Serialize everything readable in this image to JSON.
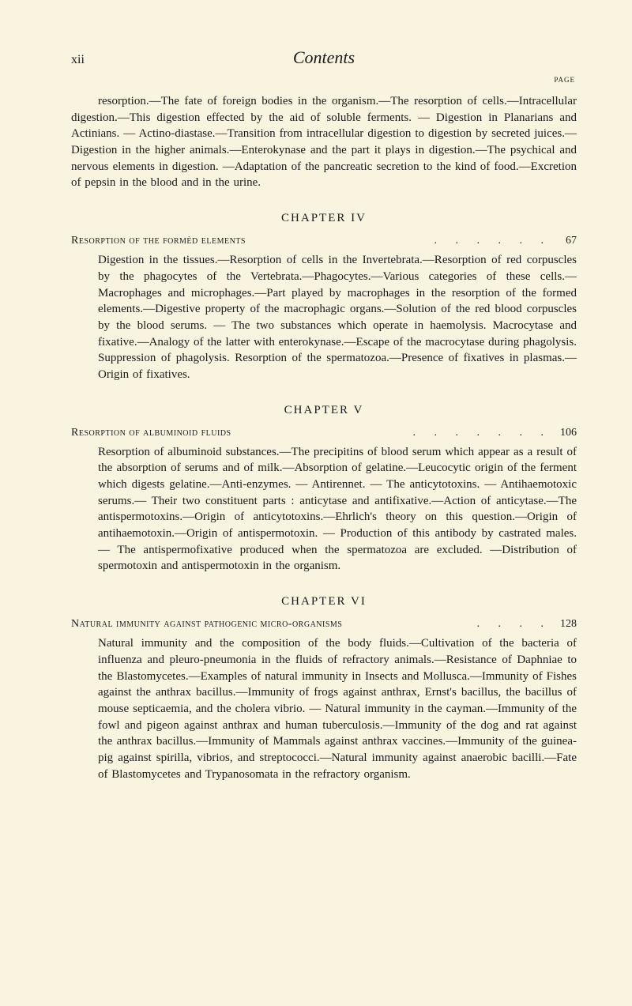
{
  "header": {
    "page_roman": "xii",
    "title": "Contents",
    "page_label": "PAGE"
  },
  "intro_para": "resorption.—The fate of foreign bodies in the organism.—The resorption of cells.—Intracellular digestion.—This digestion effected by the aid of soluble ferments. — Digestion in Planarians and Actinians. — Actino-diastase.—Transition from intracellular digestion to digestion by secreted juices.—Digestion in the higher animals.—Enterokynase and the part it plays in digestion.—The psychical and nervous elements in digestion. —Adaptation of the pancreatic secretion to the kind of food.—Excretion of pepsin in the blood and in the urine.",
  "chapters": [
    {
      "chapter_label": "CHAPTER IV",
      "section_title": "Resorption of the formèd elements",
      "page": "67",
      "body": "Digestion in the tissues.—Resorption of cells in the Invertebrata.—Resorption of red corpuscles by the phagocytes of the Vertebrata.—Phagocytes.—Various categories of these cells.—Macrophages and microphages.—Part played by macrophages in the resorption of the formed elements.—Digestive property of the macrophagic organs.—Solution of the red blood corpuscles by the blood serums. — The two substances which operate in haemolysis. Macrocytase and fixative.—Analogy of the latter with enterokynase.—Escape of the macrocytase during phagolysis. Suppression of phagolysis. Resorption of the spermatozoa.—Presence of fixatives in plasmas.—Origin of fixatives."
    },
    {
      "chapter_label": "CHAPTER V",
      "section_title": "Resorption of albuminoid fluids",
      "page": "106",
      "body": "Resorption of albuminoid substances.—The precipitins of blood serum which appear as a result of the absorption of serums and of milk.—Absorption of gelatine.—Leucocytic origin of the ferment which digests gelatine.—Anti-enzymes. — Antirennet. — The anticytotoxins. — Antihaemotoxic serums.— Their two constituent parts : anticytase and antifixative.—Action of anticytase.—The antispermotoxins.—Origin of anticytotoxins.—Ehrlich's theory on this question.—Origin of antihaemotoxin.—Origin of antispermotoxin. — Production of this antibody by castrated males. — The antispermofixative produced when the spermatozoa are excluded. —Distribution of spermotoxin and antispermotoxin in the organism."
    },
    {
      "chapter_label": "CHAPTER VI",
      "section_title": "Natural immunity against pathogenic micro-organisms",
      "page": "128",
      "body": "Natural immunity and the composition of the body fluids.—Cultivation of the bacteria of influenza and pleuro-pneumonia in the fluids of refractory animals.—Resistance of Daphniae to the Blastomycetes.—Examples of natural immunity in Insects and Mollusca.—Immunity of Fishes against the anthrax bacillus.—Immunity of frogs against anthrax, Ernst's bacillus, the bacillus of mouse septicaemia, and the cholera vibrio. — Natural immunity in the cayman.—Immunity of the fowl and pigeon against anthrax and human tuberculosis.—Immunity of the dog and rat against the anthrax bacillus.—Immunity of Mammals against anthrax vaccines.—Immunity of the guinea-pig against spirilla, vibrios, and streptococci.—Natural immunity against anaerobic bacilli.—Fate of Blastomycetes and Trypanosomata in the refractory organism."
    }
  ]
}
